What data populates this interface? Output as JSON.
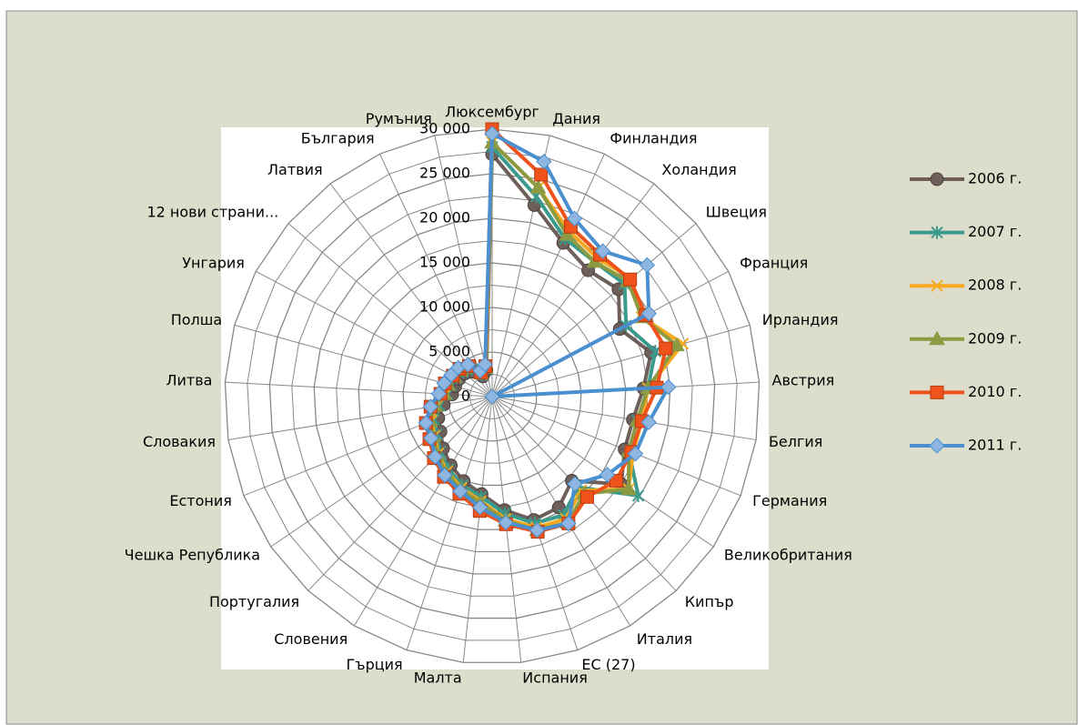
{
  "chart_data": {
    "type": "radar",
    "categories": [
      "Люксембург",
      "Дания",
      "Финландия",
      "Холандия",
      "Швеция",
      "Франция",
      "Ирландия",
      "Австрия",
      "Белгия",
      "Германия",
      "Великобритания",
      "Кипър",
      "Италия",
      "ЕС (27)",
      "Испания",
      "Малта",
      "Гърция",
      "Словения",
      "Португалия",
      "Чешка Република",
      "Естония",
      "Словакия",
      "Литва",
      "Полша",
      "Унгария",
      "12 нови страни...",
      "Латвия",
      "България",
      "Румъния"
    ],
    "series": [
      {
        "name": "2006 г.",
        "color": "#6e5f5b",
        "marker": "circle",
        "values": [
          27200,
          22000,
          19000,
          17800,
          18600,
          16200,
          18500,
          17000,
          16000,
          16000,
          17500,
          13000,
          14500,
          14600,
          12800,
          11000,
          10000,
          9000,
          8000,
          7000,
          6500,
          5500,
          4500,
          4300,
          4200,
          4000,
          3500,
          2500,
          3000
        ]
      },
      {
        "name": "2007 г.",
        "color": "#3a9a8c",
        "marker": "star",
        "values": [
          28000,
          23000,
          19500,
          19000,
          19500,
          17000,
          19000,
          17500,
          16500,
          16500,
          19800,
          14000,
          15500,
          15000,
          13200,
          11300,
          10500,
          9500,
          8500,
          7500,
          7000,
          6000,
          5000,
          4800,
          4500,
          4300,
          3800,
          2700,
          3200
        ]
      },
      {
        "name": "2008 г.",
        "color": "#f6a81e",
        "marker": "x",
        "values": [
          28500,
          24000,
          20500,
          19500,
          20500,
          19000,
          22200,
          17500,
          17000,
          17000,
          18500,
          14500,
          16000,
          15500,
          13800,
          11800,
          10800,
          9800,
          8800,
          7800,
          7300,
          6300,
          5200,
          5000,
          4700,
          4500,
          4000,
          2800,
          3300
        ]
      },
      {
        "name": "2009 г.",
        "color": "#8c9a42",
        "marker": "triangle",
        "values": [
          28500,
          24000,
          20000,
          19000,
          20000,
          19000,
          21500,
          17500,
          16500,
          16500,
          18500,
          15000,
          16500,
          15800,
          14000,
          12000,
          11000,
          10000,
          9000,
          8000,
          7500,
          6500,
          5400,
          5200,
          4800,
          4600,
          4100,
          2900,
          3400
        ]
      },
      {
        "name": "2010 г.",
        "color": "#f0521c",
        "marker": "square",
        "values": [
          30000,
          25500,
          21000,
          20000,
          20300,
          19500,
          20200,
          18500,
          17000,
          16800,
          16800,
          15500,
          16600,
          16000,
          14400,
          12900,
          11500,
          10500,
          9500,
          8500,
          8000,
          7000,
          5800,
          5500,
          5000,
          4800,
          4300,
          3000,
          3500
        ]
      },
      {
        "name": "2011 г.",
        "color": "#4a8fd0",
        "marker": "diamond",
        "values": [
          29500,
          27000,
          22000,
          20500,
          22800,
          19900,
          0,
          19800,
          17800,
          17300,
          15600,
          13500,
          16600,
          15800,
          14200,
          12500,
          11200,
          10300,
          9300,
          8300,
          8000,
          7000,
          6000,
          5600,
          5200,
          5000,
          4500,
          3200,
          3700
        ]
      }
    ],
    "ylim": [
      0,
      30000
    ],
    "yticks": [
      0,
      {
        "value": 5000,
        "label": "5 000"
      },
      {
        "value": 10000,
        "label": "10 000"
      },
      {
        "value": 15000,
        "label": "15 000"
      },
      {
        "value": 20000,
        "label": "20 000"
      },
      {
        "value": 25000,
        "label": "25 000"
      },
      {
        "value": 30000,
        "label": "30 000"
      }
    ],
    "minor_yticks": [
      2500,
      7500,
      12500,
      17500,
      22500,
      27500
    ],
    "grid": true,
    "legend": "right"
  }
}
